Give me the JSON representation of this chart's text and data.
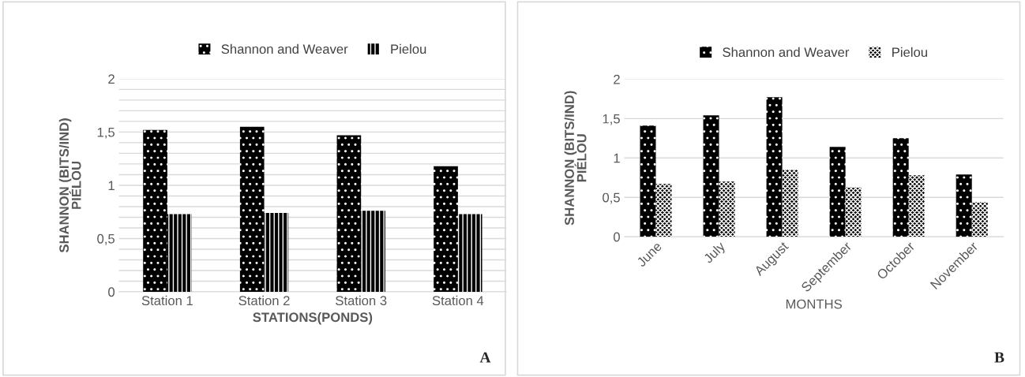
{
  "chart_data": [
    {
      "type": "bar",
      "categories": [
        "Station 1",
        "Station 2",
        "Station 3",
        "Station 4"
      ],
      "series": [
        {
          "name": "Shannon and Weaver",
          "color": "#000000",
          "values": [
            1.52,
            1.55,
            1.47,
            1.18
          ]
        },
        {
          "name": "Pielou",
          "color": "#000000",
          "values": [
            0.73,
            0.74,
            0.76,
            0.73
          ]
        }
      ],
      "xlabel": "STATIONS(PONDS)",
      "ylabel": "SHANNON (BITS/IND)\nPIÉLOU",
      "ylim": [
        0,
        2
      ],
      "yticks": [
        0,
        {
          "value": 0.1,
          "label": null
        },
        {
          "value": 0.2,
          "label": null
        },
        {
          "value": 0.3,
          "label": null
        },
        {
          "value": 0.4,
          "label": null
        },
        {
          "value": 0.5,
          "label": "0,5"
        },
        {
          "value": 0.6,
          "label": null
        },
        {
          "value": 0.7,
          "label": null
        },
        {
          "value": 0.8,
          "label": null
        },
        {
          "value": 0.9,
          "label": null
        },
        1,
        {
          "value": 1.1,
          "label": null
        },
        {
          "value": 1.2,
          "label": null
        },
        {
          "value": 1.3,
          "label": null
        },
        {
          "value": 1.4,
          "label": null
        },
        {
          "value": 1.5,
          "label": "1,5"
        },
        {
          "value": 1.6,
          "label": null
        },
        {
          "value": 1.7,
          "label": null
        },
        {
          "value": 1.8,
          "label": null
        },
        {
          "value": 1.9,
          "label": null
        },
        2
      ],
      "grid": "y",
      "legend": "top",
      "annotations": [
        "A"
      ]
    },
    {
      "type": "bar",
      "categories": [
        "June",
        "July",
        "August",
        "September",
        "October",
        "November"
      ],
      "series": [
        {
          "name": "Shannon and Weaver",
          "color": "#000000",
          "values": [
            1.41,
            1.54,
            1.77,
            1.14,
            1.25,
            0.79
          ]
        },
        {
          "name": "Pielou",
          "color": "#000000",
          "values": [
            0.67,
            0.7,
            0.85,
            0.63,
            0.78,
            0.44
          ]
        }
      ],
      "xlabel": "MONTHS",
      "ylabel": "SHANNON (BITS/IND)\nPIÉLOU",
      "ylim": [
        0,
        2
      ],
      "yticks": [
        0,
        {
          "value": 0.5,
          "label": "0,5"
        },
        1,
        {
          "value": 1.5,
          "label": "1,5"
        },
        2
      ],
      "grid": "y",
      "legend": "top",
      "annotations": [
        "B"
      ]
    }
  ]
}
